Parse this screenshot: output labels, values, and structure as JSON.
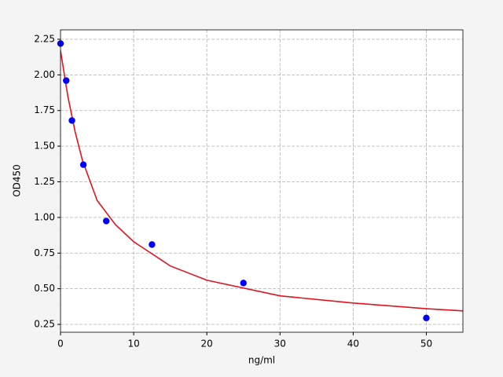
{
  "chart_data": {
    "type": "scatter",
    "xlabel": "ng/ml",
    "ylabel": "OD450",
    "xlim": [
      0,
      55
    ],
    "ylim": [
      0.195,
      2.316
    ],
    "xticks": [
      0,
      10,
      20,
      30,
      40,
      50
    ],
    "yticks": [
      0.25,
      {
        "value": 0.5,
        "label": "0.50"
      },
      0.75,
      {
        "value": 1.0,
        "label": "1.00"
      },
      1.25,
      {
        "value": 1.5,
        "label": "1.50"
      },
      1.75,
      {
        "value": 2.0,
        "label": "2.00"
      },
      2.25
    ],
    "grid": true,
    "series": [
      {
        "type": "scatter",
        "color": "#0000ff",
        "x": [
          0,
          0.78,
          1.56,
          3.125,
          6.25,
          12.5,
          25,
          50
        ],
        "values": [
          2.22,
          1.96,
          1.68,
          1.37,
          0.975,
          0.81,
          0.54,
          0.295
        ]
      },
      {
        "type": "line",
        "color": "#e0141e",
        "x": [
          0,
          1,
          2,
          3,
          5,
          7.5,
          10,
          15,
          20,
          30,
          40,
          50,
          55
        ],
        "values": [
          2.17,
          1.85,
          1.6,
          1.4,
          1.12,
          0.95,
          0.83,
          0.66,
          0.56,
          0.45,
          0.4,
          0.36,
          0.345
        ]
      }
    ]
  }
}
